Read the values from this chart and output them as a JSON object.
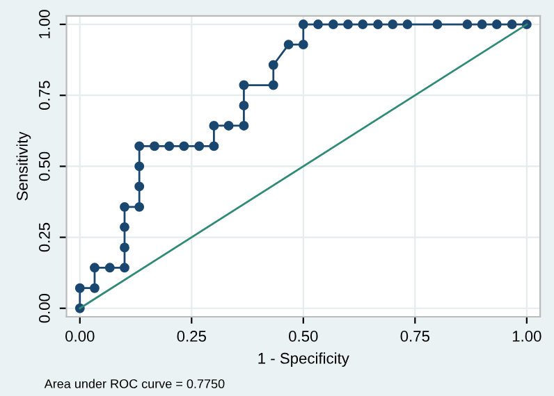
{
  "chart_data": {
    "type": "line",
    "xlabel": "1 - Specificity",
    "ylabel": "Sensitivity",
    "annotations": [
      "Area under ROC curve = 0.7750"
    ],
    "xlim": [
      0,
      1
    ],
    "ylim": [
      0,
      1
    ],
    "xticks": [
      {
        "value": 0,
        "label": "0.00"
      },
      {
        "value": 0.25,
        "label": "0.25"
      },
      {
        "value": 0.5,
        "label": "0.50"
      },
      {
        "value": 0.75,
        "label": "0.75"
      },
      {
        "value": 1,
        "label": "1.00"
      }
    ],
    "yticks": [
      {
        "value": 0,
        "label": "0.00"
      },
      {
        "value": 0.25,
        "label": "0.25"
      },
      {
        "value": 0.5,
        "label": "0.50"
      },
      {
        "value": 0.75,
        "label": "0.75"
      },
      {
        "value": 1,
        "label": "1.00"
      }
    ],
    "grid": true,
    "series": [
      {
        "color": "#1a476f",
        "marker": "circle",
        "x": [
          0,
          0,
          0.033,
          0.033,
          0.067,
          0.1,
          0.1,
          0.1,
          0.1,
          0.133,
          0.133,
          0.133,
          0.133,
          0.167,
          0.2,
          0.233,
          0.267,
          0.3,
          0.3,
          0.333,
          0.367,
          0.367,
          0.367,
          0.433,
          0.433,
          0.467,
          0.5,
          0.5,
          0.533,
          0.567,
          0.6,
          0.633,
          0.667,
          0.7,
          0.733,
          0.8,
          0.867,
          0.9,
          0.933,
          0.967,
          1
        ],
        "values": [
          0,
          0.071,
          0.071,
          0.143,
          0.143,
          0.143,
          0.214,
          0.286,
          0.357,
          0.357,
          0.429,
          0.5,
          0.571,
          0.571,
          0.571,
          0.571,
          0.571,
          0.571,
          0.643,
          0.643,
          0.643,
          0.714,
          0.786,
          0.786,
          0.857,
          0.929,
          0.929,
          1,
          1,
          1,
          1,
          1,
          1,
          1,
          1,
          1,
          1,
          1,
          1,
          1,
          1
        ]
      },
      {
        "color": "#2f8a78",
        "marker": "none",
        "x": [
          0,
          1
        ],
        "values": [
          0,
          1
        ]
      }
    ]
  }
}
